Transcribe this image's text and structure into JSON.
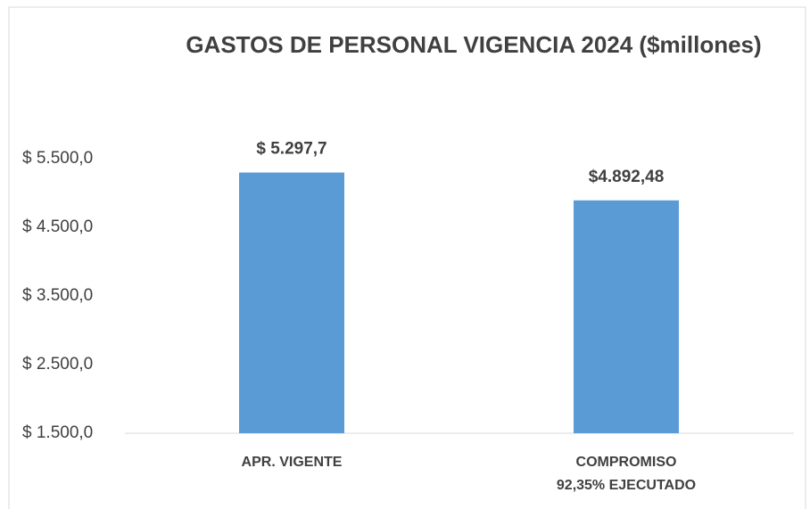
{
  "chart_data": {
    "type": "bar",
    "title": "GASTOS DE PERSONAL VIGENCIA 2024 ($millones)",
    "categories": [
      "APR. VIGENTE",
      "COMPROMISO\n92,35% EJECUTADO"
    ],
    "values": [
      5297.7,
      4892.48
    ],
    "value_labels": [
      "$ 5.297,7",
      "$4.892,48"
    ],
    "color": "#5b9bd5",
    "ylim": [
      1500,
      5500
    ],
    "yticks": [
      {
        "value": 1500,
        "label": "$ 1.500,0"
      },
      {
        "value": 2500,
        "label": "$ 2.500,0"
      },
      {
        "value": 3500,
        "label": "$ 3.500,0"
      },
      {
        "value": 4500,
        "label": "$ 4.500,0"
      },
      {
        "value": 5500,
        "label": "$ 5.500,0"
      }
    ],
    "grid": false
  }
}
